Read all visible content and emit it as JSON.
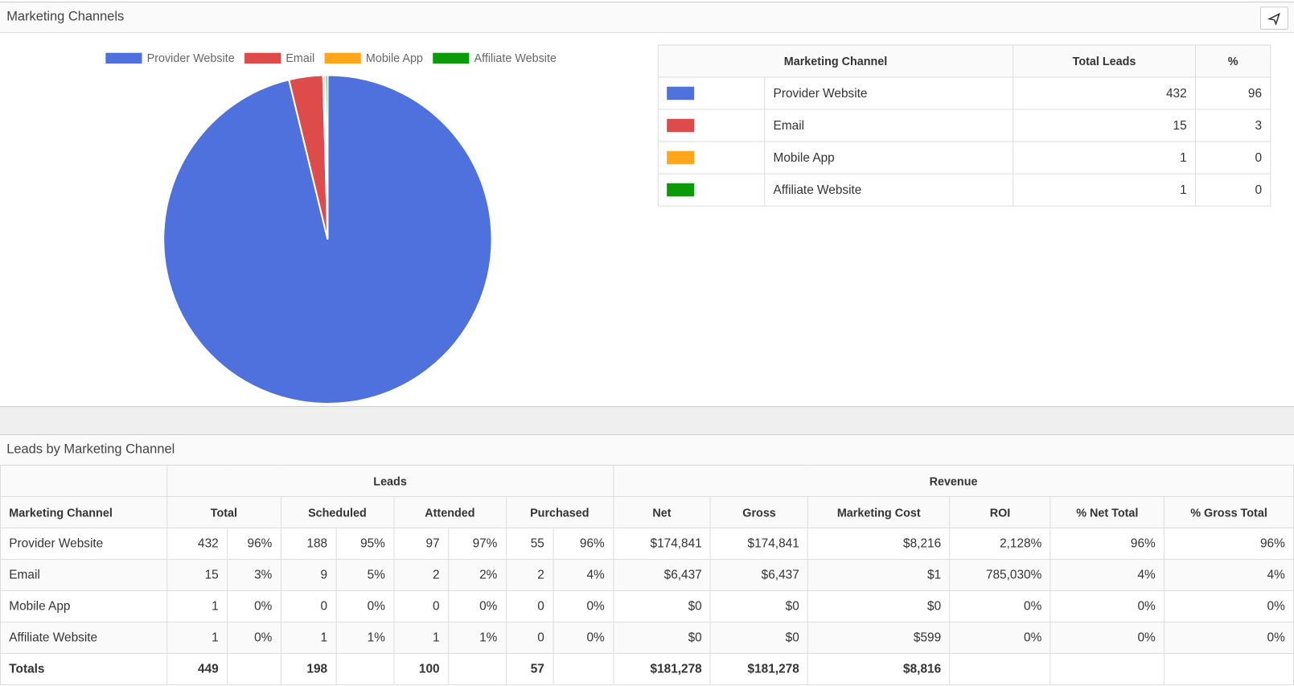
{
  "panels": {
    "top_title": "Marketing Channels",
    "bottom_title": "Leads by Marketing Channel"
  },
  "chart_data": {
    "type": "pie",
    "categories": [
      "Provider Website",
      "Email",
      "Mobile App",
      "Affiliate Website"
    ],
    "values": [
      432,
      15,
      1,
      1
    ],
    "colors": [
      "#4e71dd",
      "#dd4b4b",
      "#ffa61a",
      "#0a9a0a"
    ],
    "legend": "top"
  },
  "summary_table": {
    "headers": [
      "Marketing Channel",
      "Total Leads",
      "%"
    ],
    "percents": [
      96,
      3,
      0,
      0
    ]
  },
  "leads_table": {
    "groups": [
      "Leads",
      "Revenue"
    ],
    "headers": [
      "Marketing Channel",
      "Total",
      "Scheduled",
      "Attended",
      "Purchased",
      "Net",
      "Gross",
      "Marketing Cost",
      "ROI",
      "% Net Total",
      "% Gross Total"
    ],
    "rows": [
      [
        "Provider Website",
        "432",
        "96%",
        "188",
        "95%",
        "97",
        "97%",
        "55",
        "96%",
        "$174,841",
        "$174,841",
        "$8,216",
        "2,128%",
        "96%",
        "96%"
      ],
      [
        "Email",
        "15",
        "3%",
        "9",
        "5%",
        "2",
        "2%",
        "2",
        "4%",
        "$6,437",
        "$6,437",
        "$1",
        "785,030%",
        "4%",
        "4%"
      ],
      [
        "Mobile App",
        "1",
        "0%",
        "0",
        "0%",
        "0",
        "0%",
        "0",
        "0%",
        "$0",
        "$0",
        "$0",
        "0%",
        "0%",
        "0%"
      ],
      [
        "Affiliate Website",
        "1",
        "0%",
        "1",
        "1%",
        "1",
        "1%",
        "0",
        "0%",
        "$0",
        "$0",
        "$599",
        "0%",
        "0%",
        "0%"
      ]
    ],
    "totals": [
      "Totals",
      "449",
      "198",
      "100",
      "57",
      "$181,278",
      "$181,278",
      "$8,816"
    ]
  }
}
